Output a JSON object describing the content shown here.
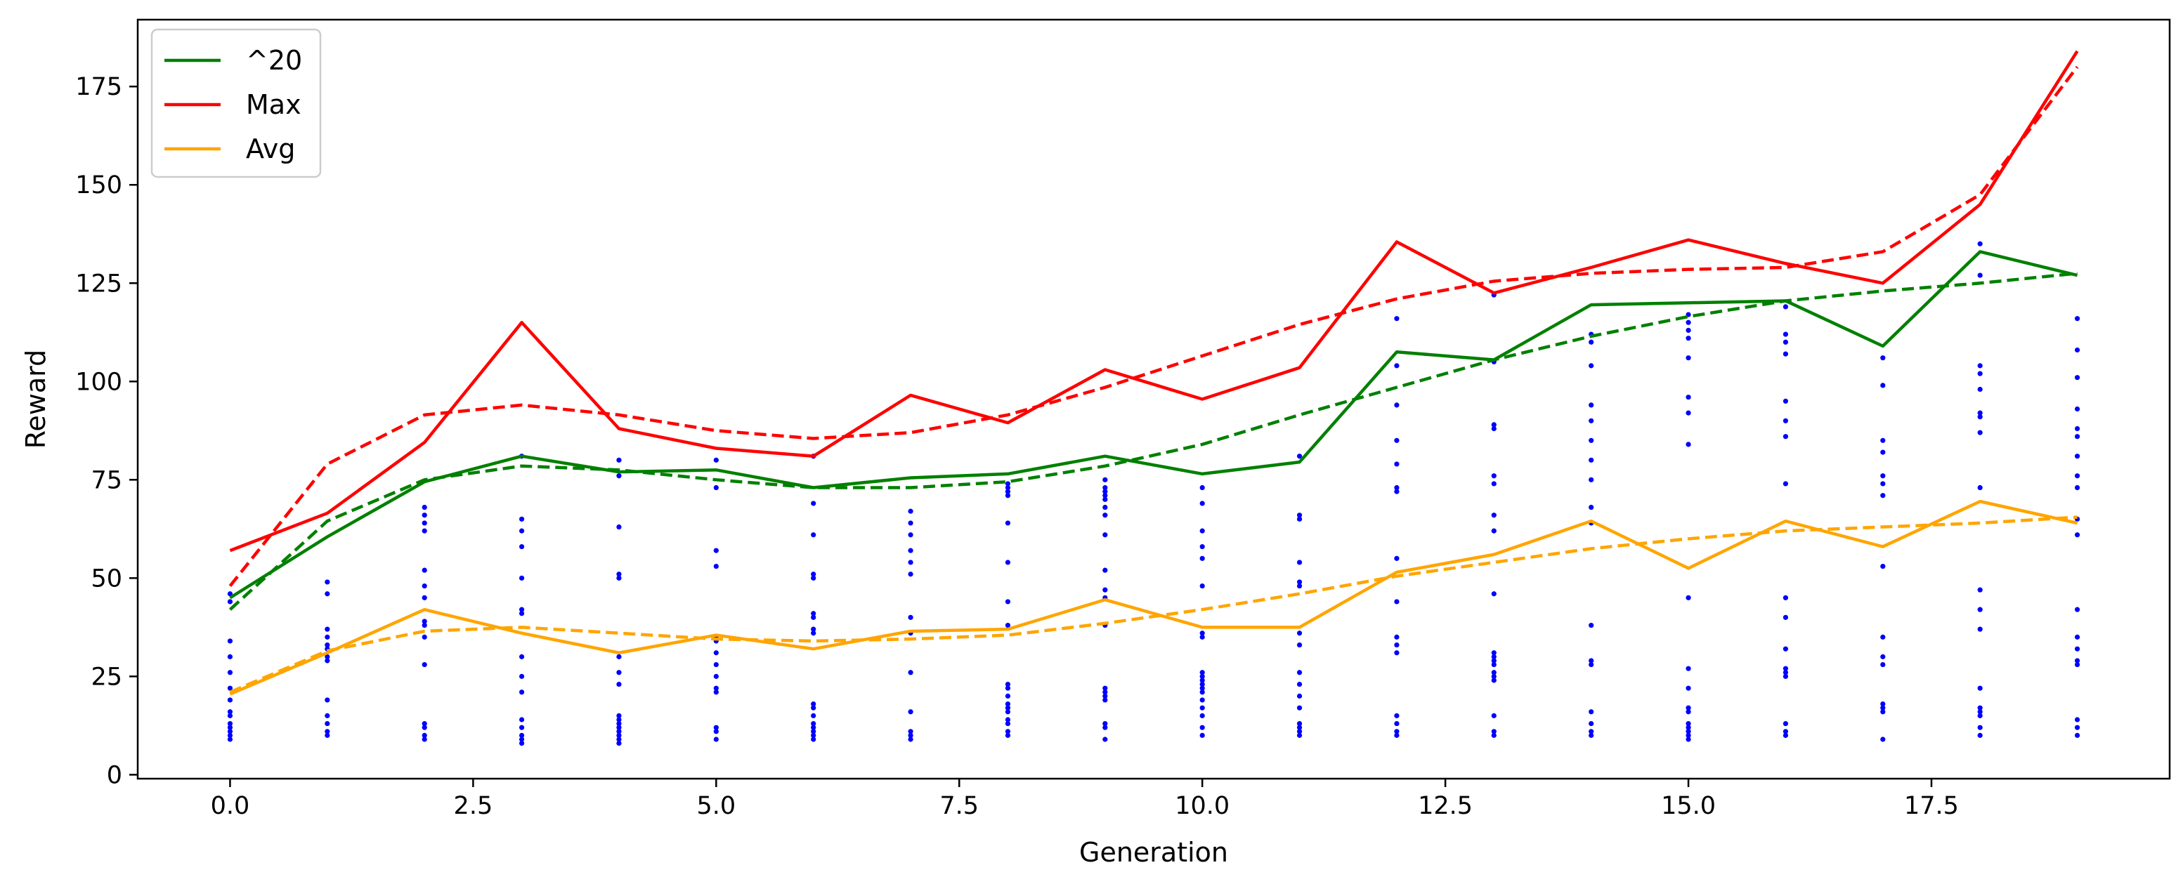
{
  "chart_data": {
    "type": "line",
    "xlabel": "Generation",
    "ylabel": "Reward",
    "xlim": [
      -0.95,
      19.95
    ],
    "ylim": [
      -1,
      192
    ],
    "x_ticks": [
      0.0,
      2.5,
      5.0,
      7.5,
      10.0,
      12.5,
      15.0,
      17.5
    ],
    "x_tick_labels": [
      "0.0",
      "2.5",
      "5.0",
      "7.5",
      "10.0",
      "12.5",
      "15.0",
      "17.5"
    ],
    "y_ticks": [
      0,
      25,
      50,
      75,
      100,
      125,
      150,
      175
    ],
    "y_tick_labels": [
      "0",
      "25",
      "50",
      "75",
      "100",
      "125",
      "150",
      "175"
    ],
    "grid": false,
    "legend": "top-left",
    "generations": [
      0,
      1,
      2,
      3,
      4,
      5,
      6,
      7,
      8,
      9,
      10,
      11,
      12,
      13,
      14,
      15,
      16,
      17,
      18,
      19
    ],
    "series": [
      {
        "name": "^20",
        "color": "#008000",
        "values": [
          45.0,
          60.5,
          74.5,
          81.0,
          77.0,
          77.5,
          73.0,
          75.5,
          76.5,
          81.0,
          76.5,
          79.5,
          107.5,
          105.5,
          119.5,
          120.0,
          120.5,
          109.0,
          133.0,
          127.0
        ],
        "trend": [
          42.0,
          64.5,
          75.0,
          78.5,
          77.5,
          75.0,
          73.0,
          73.0,
          74.5,
          78.5,
          84.0,
          91.5,
          98.5,
          105.5,
          111.5,
          116.5,
          120.5,
          123.0,
          125.0,
          127.5
        ]
      },
      {
        "name": "Max",
        "color": "#ff0000",
        "values": [
          57.0,
          66.5,
          84.5,
          115.0,
          88.0,
          83.0,
          81.0,
          96.5,
          89.5,
          103.0,
          95.5,
          103.5,
          135.5,
          122.5,
          129.0,
          136.0,
          130.0,
          125.0,
          145.0,
          184.0
        ],
        "trend": [
          48.0,
          79.0,
          91.5,
          94.0,
          91.5,
          87.5,
          85.5,
          87.0,
          91.5,
          98.5,
          106.5,
          114.5,
          121.0,
          125.5,
          127.5,
          128.5,
          129.0,
          133.0,
          147.5,
          180.0
        ]
      },
      {
        "name": "Avg",
        "color": "#ffa500",
        "values": [
          20.5,
          31.0,
          42.0,
          36.0,
          31.0,
          35.5,
          32.0,
          36.5,
          37.0,
          44.5,
          37.5,
          37.5,
          51.5,
          56.0,
          64.5,
          52.5,
          64.5,
          58.0,
          69.5,
          64.0
        ],
        "trend": [
          21.0,
          31.5,
          36.5,
          37.5,
          36.0,
          34.5,
          34.0,
          34.5,
          35.5,
          38.5,
          42.0,
          46.0,
          50.5,
          54.0,
          57.5,
          60.0,
          62.0,
          63.0,
          64.0,
          65.5
        ]
      }
    ],
    "scatter": {
      "color": "#0000ff",
      "points_by_generation": [
        [
          9,
          10,
          11,
          12,
          13,
          15,
          16,
          19,
          22,
          26,
          30,
          34,
          44,
          46
        ],
        [
          10,
          11,
          13,
          15,
          19,
          29,
          30,
          32,
          33,
          35,
          37,
          46,
          49
        ],
        [
          9,
          10,
          12,
          13,
          28,
          35,
          38,
          39,
          45,
          48,
          52,
          62,
          64,
          66,
          68
        ],
        [
          8,
          9,
          10,
          12,
          14,
          21,
          25,
          30,
          41,
          42,
          50,
          58,
          62,
          65,
          81
        ],
        [
          8,
          9,
          10,
          11,
          12,
          13,
          14,
          15,
          23,
          26,
          30,
          50,
          51,
          63,
          76,
          80
        ],
        [
          9,
          11,
          12,
          21,
          22,
          25,
          28,
          31,
          34,
          35,
          53,
          57,
          73,
          80
        ],
        [
          9,
          10,
          11,
          12,
          13,
          15,
          17,
          18,
          36,
          37,
          40,
          41,
          50,
          51,
          61,
          69,
          81
        ],
        [
          9,
          10,
          11,
          16,
          26,
          36,
          40,
          51,
          54,
          57,
          61,
          64,
          67
        ],
        [
          10,
          11,
          13,
          14,
          16,
          17,
          18,
          20,
          22,
          23,
          38,
          44,
          54,
          64,
          71,
          72,
          73,
          74
        ],
        [
          9,
          12,
          13,
          19,
          20,
          21,
          22,
          38,
          45,
          47,
          52,
          61,
          66,
          68,
          70,
          71,
          72,
          73,
          75
        ],
        [
          10,
          12,
          15,
          17,
          19,
          21,
          22,
          23,
          24,
          25,
          26,
          35,
          36,
          48,
          55,
          58,
          62,
          69,
          73
        ],
        [
          10,
          11,
          12,
          13,
          17,
          20,
          23,
          26,
          33,
          36,
          48,
          49,
          54,
          65,
          66,
          81
        ],
        [
          10,
          11,
          13,
          15,
          31,
          33,
          35,
          44,
          55,
          72,
          73,
          79,
          85,
          94,
          104,
          116
        ],
        [
          10,
          11,
          15,
          24,
          25,
          26,
          28,
          29,
          30,
          31,
          46,
          62,
          66,
          74,
          76,
          88,
          89,
          105,
          122
        ],
        [
          10,
          11,
          13,
          16,
          28,
          29,
          38,
          64,
          68,
          75,
          80,
          85,
          90,
          94,
          104,
          110,
          112
        ],
        [
          9,
          10,
          11,
          12,
          13,
          16,
          17,
          22,
          27,
          45,
          84,
          92,
          96,
          106,
          111,
          113,
          115,
          117
        ],
        [
          10,
          11,
          13,
          25,
          26,
          27,
          32,
          40,
          45,
          74,
          86,
          90,
          95,
          107,
          110,
          112,
          119
        ],
        [
          9,
          16,
          17,
          18,
          28,
          30,
          35,
          53,
          71,
          74,
          76,
          82,
          85,
          99,
          106
        ],
        [
          10,
          12,
          15,
          16,
          17,
          22,
          37,
          42,
          47,
          73,
          87,
          91,
          92,
          98,
          102,
          104,
          127,
          135
        ],
        [
          10,
          12,
          14,
          28,
          29,
          32,
          35,
          42,
          61,
          65,
          73,
          76,
          81,
          86,
          88,
          93,
          101,
          108,
          116
        ]
      ]
    }
  }
}
